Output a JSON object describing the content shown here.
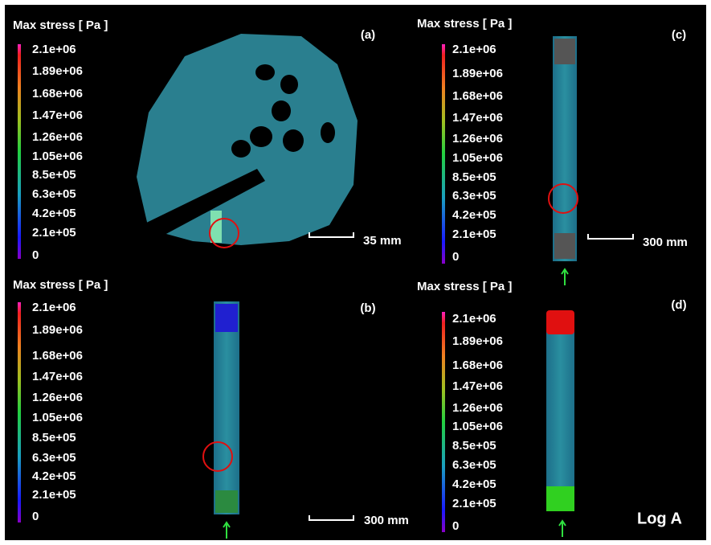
{
  "panels": [
    {
      "label": "(a)",
      "colorbar_title": "Max stress [ Pa ]",
      "ticks": [
        "2.1e+06",
        "1.89e+06",
        "1.68e+06",
        "1.47e+06",
        "1.26e+06",
        "1.05e+06",
        "8.5e+05",
        "6.3e+05",
        "4.2e+05",
        "2.1e+05",
        "0"
      ],
      "scale": "35 mm"
    },
    {
      "label": "(b)",
      "colorbar_title": "Max stress [ Pa ]",
      "ticks": [
        "2.1e+06",
        "1.89e+06",
        "1.68e+06",
        "1.47e+06",
        "1.26e+06",
        "1.05e+06",
        "8.5e+05",
        "6.3e+05",
        "4.2e+05",
        "2.1e+05",
        "0"
      ],
      "scale": "300 mm"
    },
    {
      "label": "(c)",
      "colorbar_title": "Max stress [ Pa ]",
      "ticks": [
        "2.1e+06",
        "1.89e+06",
        "1.68e+06",
        "1.47e+06",
        "1.26e+06",
        "1.05e+06",
        "8.5e+05",
        "6.3e+05",
        "4.2e+05",
        "2.1e+05",
        "0"
      ],
      "scale": "300 mm"
    },
    {
      "label": "(d)",
      "colorbar_title": "Max stress [ Pa ]",
      "ticks": [
        "2.1e+06",
        "1.89e+06",
        "1.68e+06",
        "1.47e+06",
        "1.26e+06",
        "1.05e+06",
        "8.5e+05",
        "6.3e+05",
        "4.2e+05",
        "2.1e+05",
        "0"
      ],
      "note": "Log A"
    }
  ]
}
